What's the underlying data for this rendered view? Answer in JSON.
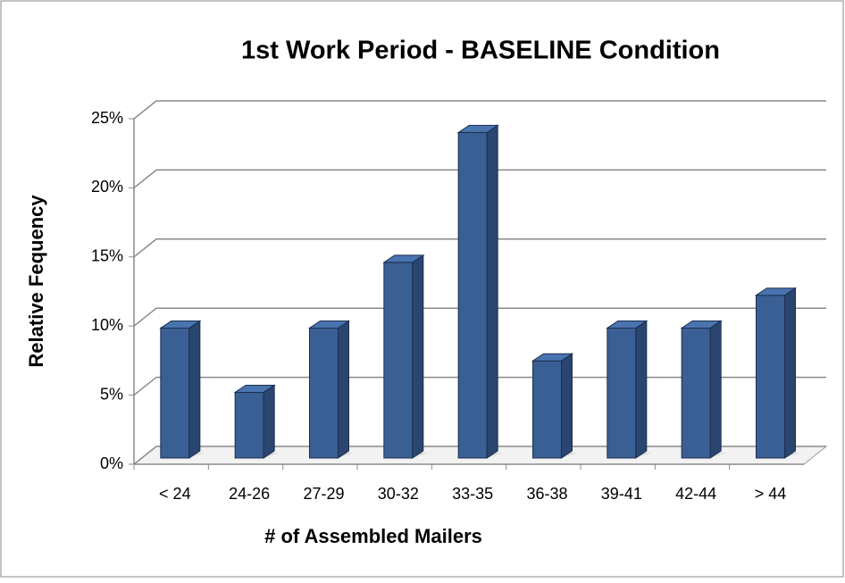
{
  "chart_data": {
    "type": "bar3d",
    "title": "1st Work Period - BASELINE Condition",
    "x_label": "# of Assembled Mailers",
    "y_label": "Relative Fequency",
    "categories": [
      "< 24",
      "24-26",
      "27-29",
      "30-32",
      "33-35",
      "36-38",
      "39-41",
      "42-44",
      "> 44"
    ],
    "values": [
      9.5,
      4.8,
      9.5,
      14.3,
      23.8,
      7.1,
      9.5,
      9.5,
      11.9
    ],
    "color": "#3a5f94",
    "ylim": [
      0,
      25
    ],
    "yticks": [
      {
        "value": 0,
        "label": "0%"
      },
      {
        "value": 5,
        "label": "5%"
      },
      {
        "value": 10,
        "label": "10%"
      },
      {
        "value": 15,
        "label": "15%"
      },
      {
        "value": 20,
        "label": "20%"
      },
      {
        "value": 25,
        "label": "25%"
      }
    ],
    "grid": true
  }
}
